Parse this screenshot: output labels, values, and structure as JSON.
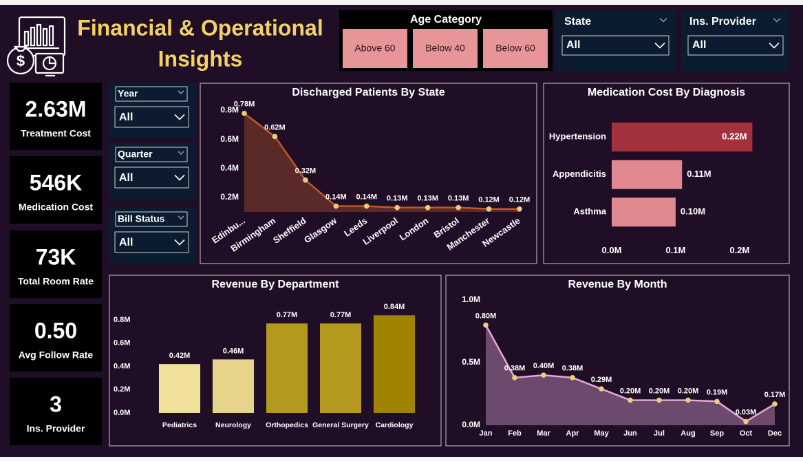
{
  "header": {
    "title_lines": [
      "Financial & Operational",
      "Insights"
    ]
  },
  "filters": {
    "age_category": {
      "label": "Age Category",
      "options": [
        "Above 60",
        "Below 40",
        "Below 60"
      ]
    },
    "state": {
      "label": "State",
      "value": "All"
    },
    "ins_provider": {
      "label": "Ins. Provider",
      "value": "All"
    },
    "year": {
      "label": "Year",
      "value": "All"
    },
    "quarter": {
      "label": "Quarter",
      "value": "All"
    },
    "bill_status": {
      "label": "Bill Status",
      "value": "All"
    }
  },
  "kpis": [
    {
      "value": "2.63M",
      "label": "Treatment Cost"
    },
    {
      "value": "546K",
      "label": "Medication Cost"
    },
    {
      "value": "73K",
      "label": "Total Room Rate"
    },
    {
      "value": "0.50",
      "label": "Avg Follow Rate"
    },
    {
      "value": "3",
      "label": "Ins. Provider"
    }
  ],
  "chart_data": [
    {
      "type": "area",
      "title": "Discharged Patients By State",
      "categories": [
        "Edinbu...",
        "Birmingham",
        "Sheffield",
        "Glasgow",
        "Leeds",
        "Liverpool",
        "London",
        "Bristol",
        "Manchester",
        "Newcastle"
      ],
      "values": [
        0.78,
        0.62,
        0.32,
        0.14,
        0.14,
        0.13,
        0.13,
        0.13,
        0.12,
        0.12
      ],
      "value_labels": [
        "0.78M",
        "0.62M",
        "0.32M",
        "0.14M",
        "0.14M",
        "0.13M",
        "0.13M",
        "0.13M",
        "0.12M",
        "0.12M"
      ],
      "color": "#c4562a",
      "fill": "#5a2a28",
      "marker_color": "#e8d07a",
      "ylim": [
        0.1,
        0.85
      ],
      "yticks": [
        {
          "value": 0.2,
          "label": "0.2M"
        },
        {
          "value": 0.4,
          "label": "0.4M"
        },
        {
          "value": 0.6,
          "label": "0.6M"
        },
        {
          "value": 0.8,
          "label": "0.8M"
        }
      ]
    },
    {
      "type": "hbar",
      "title": "Medication Cost By Diagnosis",
      "categories": [
        "Hypertension",
        "Appendicitis",
        "Asthma"
      ],
      "values": [
        0.22,
        0.11,
        0.1
      ],
      "value_labels": [
        "0.22M",
        "0.11M",
        "0.10M"
      ],
      "colors": [
        "#a3323f",
        "#e08890",
        "#e08890"
      ],
      "xlim": [
        0,
        0.24
      ],
      "xticks": [
        {
          "value": 0,
          "label": "0.0M"
        },
        {
          "value": 0.1,
          "label": "0.1M"
        },
        {
          "value": 0.2,
          "label": "0.2M"
        }
      ]
    },
    {
      "type": "bar",
      "title": "Revenue By Department",
      "categories": [
        "Pediatrics",
        "Neurology",
        "Orthopedics",
        "General Surgery",
        "Cardiology"
      ],
      "values": [
        0.42,
        0.46,
        0.77,
        0.77,
        0.84
      ],
      "value_labels": [
        "0.42M",
        "0.46M",
        "0.77M",
        "0.77M",
        "0.84M"
      ],
      "colors": [
        "#f0e09a",
        "#e6d48a",
        "#b5981e",
        "#b5981e",
        "#a08300"
      ],
      "ylim": [
        0,
        0.88
      ],
      "yticks": [
        {
          "value": 0,
          "label": "0.0M"
        },
        {
          "value": 0.2,
          "label": "0.2M"
        },
        {
          "value": 0.4,
          "label": "0.4M"
        },
        {
          "value": 0.6,
          "label": "0.6M"
        },
        {
          "value": 0.8,
          "label": "0.8M"
        }
      ]
    },
    {
      "type": "area",
      "title": "Revenue By Month",
      "categories": [
        "Jan",
        "Feb",
        "Mar",
        "Apr",
        "May",
        "Jun",
        "Jul",
        "Aug",
        "Sep",
        "Oct",
        "Dec"
      ],
      "values": [
        0.8,
        0.38,
        0.4,
        0.38,
        0.29,
        0.2,
        0.2,
        0.2,
        0.19,
        0.03,
        0.17
      ],
      "value_labels": [
        "0.80M",
        "0.38M",
        "0.40M",
        "0.38M",
        "0.29M",
        "0.20M",
        "0.20M",
        "0.20M",
        "0.19M",
        "0.03M",
        "0.17M"
      ],
      "color": "#e8a8d8",
      "fill": "#6b4a6e",
      "marker_color": "#e8d07a",
      "ylim": [
        0,
        1.0
      ],
      "yticks": [
        {
          "value": 0,
          "label": "0.0M"
        },
        {
          "value": 0.5,
          "label": "0.5M"
        },
        {
          "value": 1.0,
          "label": "1.0M"
        }
      ]
    }
  ]
}
